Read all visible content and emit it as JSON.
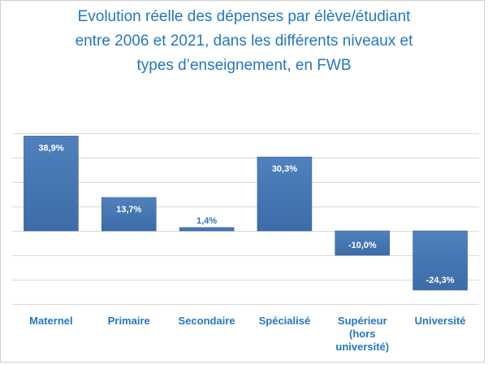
{
  "chart_data": {
    "type": "bar",
    "title_lines": [
      "Evolution réelle des dépenses par élève/étudiant",
      "entre 2006 et 2021, dans les différents niveaux et",
      "types d’enseignement, en FWB"
    ],
    "categories": [
      [
        "Maternel"
      ],
      [
        "Primaire"
      ],
      [
        "Secondaire"
      ],
      [
        "Spécialisé"
      ],
      [
        "Supérieur",
        "(hors",
        "université)"
      ],
      [
        "Université"
      ]
    ],
    "values": [
      38.9,
      13.7,
      1.4,
      30.3,
      -10.0,
      -24.3
    ],
    "data_labels": [
      "38,9%",
      "13,7%",
      "1,4%",
      "30,3%",
      "-10,0%",
      "-24,3%"
    ],
    "ylim": [
      -30,
      50
    ],
    "ytick_step": 10,
    "grid": true,
    "legend": "none",
    "xlabel": "",
    "ylabel": "",
    "colors": {
      "bar": "#4A7EBB",
      "text": "#2277C2",
      "grid": "#d9d9d9"
    }
  }
}
